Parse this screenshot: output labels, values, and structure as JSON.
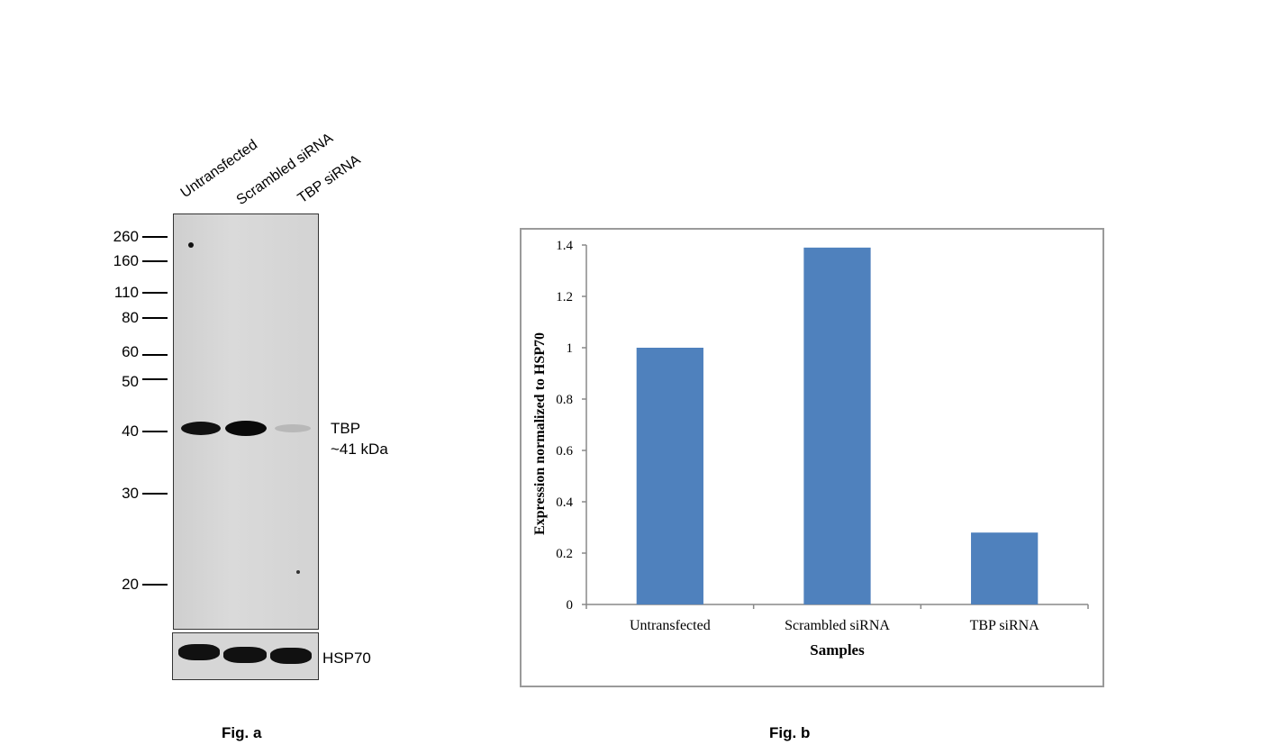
{
  "fig_a": {
    "caption": "Fig. a",
    "lanes": [
      "Untransfected",
      "Scrambled siRNA",
      "TBP siRNA"
    ],
    "markers": [
      "260",
      "160",
      "110",
      "80",
      "60",
      "50",
      "40",
      "30",
      "20"
    ],
    "band_label_line1": "TBP",
    "band_label_line2": "~41 kDa",
    "loading_control": "HSP70"
  },
  "fig_b": {
    "caption": "Fig. b"
  },
  "chart_data": {
    "type": "bar",
    "categories": [
      "Untransfected",
      "Scrambled siRNA",
      "TBP siRNA"
    ],
    "values": [
      1.0,
      1.39,
      0.28
    ],
    "title": "",
    "xlabel": "Samples",
    "ylabel": "Expression normalized to HSP70",
    "ylim": [
      0,
      1.4
    ],
    "yticks": [
      "0",
      "0.2",
      "0.4",
      "0.6",
      "0.8",
      "1",
      "1.2",
      "1.4"
    ],
    "bar_color": "#4f81bd",
    "grid": false,
    "legend": "none"
  }
}
